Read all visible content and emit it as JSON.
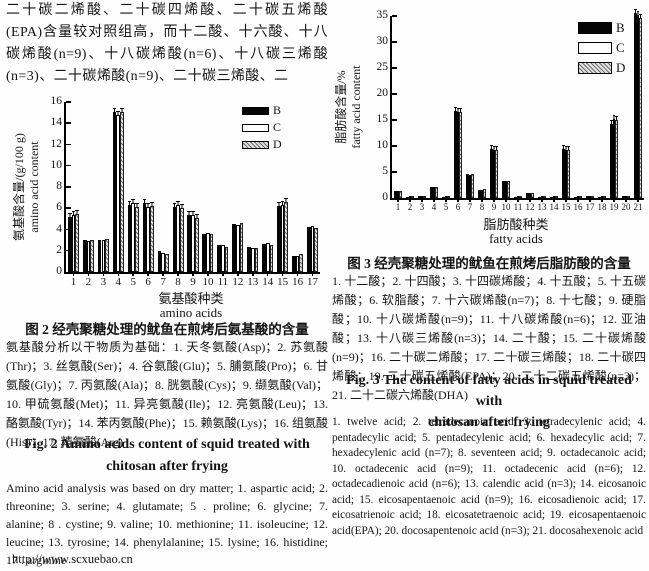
{
  "page": {
    "footer_url": "http://www.scxuebao.cn"
  },
  "intro_paragraph": "二十碳二烯酸、二十碳四烯酸、二十碳五烯酸(EPA)含量较对照组高，而十二酸、十六酸、十八碳烯酸(n=9)、十八碳烯酸(n=6)、十八碳三烯酸(n=3)、二十碳烯酸(n=9)、二十碳三烯酸、二",
  "figure2": {
    "caption_zh": "图 2  经壳聚糖处理的鱿鱼在煎烤后氨基酸的含量",
    "note_zh": "氨基酸分析以干物质为基础：1. 天冬氨酸(Asp)；2. 苏氨酸(Thr)；3. 丝氨酸(Ser)；4. 谷氨酸(Glu)；5. 脯氨酸(Pro)；6. 甘氨酸(Gly)；7. 丙氨酸(Ala)；8. 胱氨酸(Cys)；9. 缬氨酸(Val)；10. 甲硫氨酸(Met)；11. 异亮氨酸(Ile)；12. 亮氨酸(Leu)；13. 酪氨酸(Tyr)；14. 苯丙氨酸(Phe)；15. 赖氨酸(Lys)；16. 组氨酸(His)；17. 精氨酸(Arg)",
    "caption_en_line1": "Fig. 2   Amino acids content of squid treated with",
    "caption_en_line2": "chitosan after frying",
    "note_en": "Amino acid analysis was based on dry matter; 1. aspartic acid; 2. threonine; 3. serine; 4. glutamate; 5 . proline; 6. glycine; 7. alanine; 8 . cystine; 9. valine; 10. methionine; 11. isoleucine; 12. leucine; 13. tyrosine; 14. phenylalanine; 15. lysine; 16. histidine; 17 . arginine"
  },
  "figure3": {
    "caption_zh": "图 3  经壳聚糖处理的鱿鱼在煎烤后脂肪酸的含量",
    "note_zh": "1. 十二酸；2. 十四酸；3. 十四碳烯酸；4. 十五酸；5. 十五碳烯酸；6. 软脂酸；7. 十六碳烯酸(n=7)；8. 十七酸；9. 硬脂酸；10. 十八碳烯酸(n=9)；11. 十八碳烯酸(n=6)；12. 亚油酸；13. 十八碳三烯酸(n=3)；14. 二十酸；15. 二十碳烯酸(n=9)；16. 二十碳二烯酸；17. 二十碳三烯酸；18. 二十碳四烯酸；19. 二十碳五烯酸(EPA)；20. 二十二碳五烯酸(n=3)；21. 二十二碳六烯酸(DHA)",
    "caption_en_line1": "Fig. 3   The content of fatty acids in squid treated with",
    "caption_en_line2": "chitosan after frying",
    "note_en": "1. twelve acid; 2. tetradecanoic acid; 3. tetradecylenic acid; 4. pentadecylic acid; 5. pentadecylenic acid; 6. hexadecylic acid; 7. hexadecylenic acid (n=7); 8. seventeen acid; 9. octadecanoic acid; 10. octadecenic acid (n=9); 11. octadecenic acid (n=6); 12. octadecadienoic acid (n=6); 13. calendic acid (n=3); 14. eicosanoic acid; 15. eicosapentaenoic acid (n=9); 16. eicosadienoic acid; 17. eicosatrienoic acid; 18. eicosatetraenoic acid; 19. eicosapentaenoic acid(EPA); 20. docosapentenoic acid (n=3); 21. docosahexenoic acid"
  },
  "chart_data": [
    {
      "type": "bar",
      "title": "经壳聚糖处理的鱿鱼在煎烤后氨基酸的含量",
      "xlabel_zh": "氨基酸种类",
      "xlabel_en": "amino acids",
      "ylabel_zh": "氨基酸含量/(g/100 g)",
      "ylabel_en": "amino acid content",
      "ylim": [
        0,
        16
      ],
      "yticks": [
        0,
        2,
        4,
        6,
        8,
        10,
        12,
        14,
        16
      ],
      "grid": false,
      "legend_position": "top-right",
      "categories": [
        "1",
        "2",
        "3",
        "4",
        "5",
        "6",
        "7",
        "8",
        "9",
        "10",
        "11",
        "12",
        "13",
        "14",
        "15",
        "16",
        "17"
      ],
      "series": [
        {
          "name": "B",
          "fill": "#000000",
          "pattern": "solid",
          "values": [
            5.2,
            3.0,
            3.0,
            15.1,
            6.3,
            6.5,
            2.0,
            6.1,
            5.4,
            3.6,
            2.5,
            4.5,
            2.4,
            2.6,
            6.2,
            1.5,
            4.2
          ]
        },
        {
          "name": "C",
          "fill": "#ffffff",
          "pattern": "outline",
          "values": [
            5.4,
            2.9,
            3.0,
            14.8,
            6.5,
            6.1,
            1.8,
            6.3,
            5.4,
            3.7,
            2.5,
            4.4,
            2.3,
            2.7,
            6.3,
            1.5,
            4.3
          ]
        },
        {
          "name": "D",
          "fill": "#bbbbbb",
          "pattern": "diagonal-hatch",
          "values": [
            5.5,
            3.0,
            3.1,
            15.1,
            6.1,
            6.2,
            1.7,
            6.0,
            5.1,
            3.6,
            2.4,
            4.6,
            2.3,
            2.5,
            6.6,
            1.7,
            4.1
          ]
        }
      ]
    },
    {
      "type": "bar",
      "title": "经壳聚糖处理的鱿鱼在煎烤后脂肪酸的含量",
      "xlabel_zh": "脂肪酸种类",
      "xlabel_en": "fatty acids",
      "ylabel_zh": "脂肪酸含量/%",
      "ylabel_en": "fatty acid content",
      "ylim": [
        0,
        35
      ],
      "yticks": [
        0,
        5,
        10,
        15,
        20,
        25,
        30,
        35
      ],
      "grid": false,
      "legend_position": "top-right",
      "categories": [
        "1",
        "2",
        "3",
        "4",
        "5",
        "6",
        "7",
        "8",
        "9",
        "10",
        "11",
        "12",
        "13",
        "14",
        "15",
        "16",
        "17",
        "18",
        "19",
        "20",
        "21"
      ],
      "series": [
        {
          "name": "B",
          "fill": "#000000",
          "pattern": "solid",
          "values": [
            1.3,
            0.1,
            0.4,
            2.1,
            0.1,
            16.8,
            4.6,
            1.6,
            9.4,
            3.3,
            0.1,
            0.9,
            0.1,
            0.1,
            9.5,
            0.1,
            0.3,
            0.1,
            14.3,
            0.4,
            35.6
          ]
        },
        {
          "name": "C",
          "fill": "#ffffff",
          "pattern": "outline",
          "values": [
            1.3,
            0.1,
            0.4,
            2.1,
            0.1,
            16.6,
            4.5,
            1.6,
            9.2,
            3.2,
            0.1,
            0.9,
            0.1,
            0.1,
            9.3,
            0.1,
            0.3,
            0.1,
            15.1,
            0.4,
            35.2
          ]
        },
        {
          "name": "D",
          "fill": "#bbbbbb",
          "pattern": "diagonal-hatch",
          "values": [
            1.3,
            0.1,
            0.4,
            2.1,
            0.1,
            16.6,
            4.7,
            1.7,
            9.3,
            3.3,
            0.1,
            0.9,
            0.1,
            0.1,
            9.3,
            0.1,
            0.3,
            0.1,
            15.0,
            0.4,
            34.6
          ]
        }
      ]
    }
  ]
}
